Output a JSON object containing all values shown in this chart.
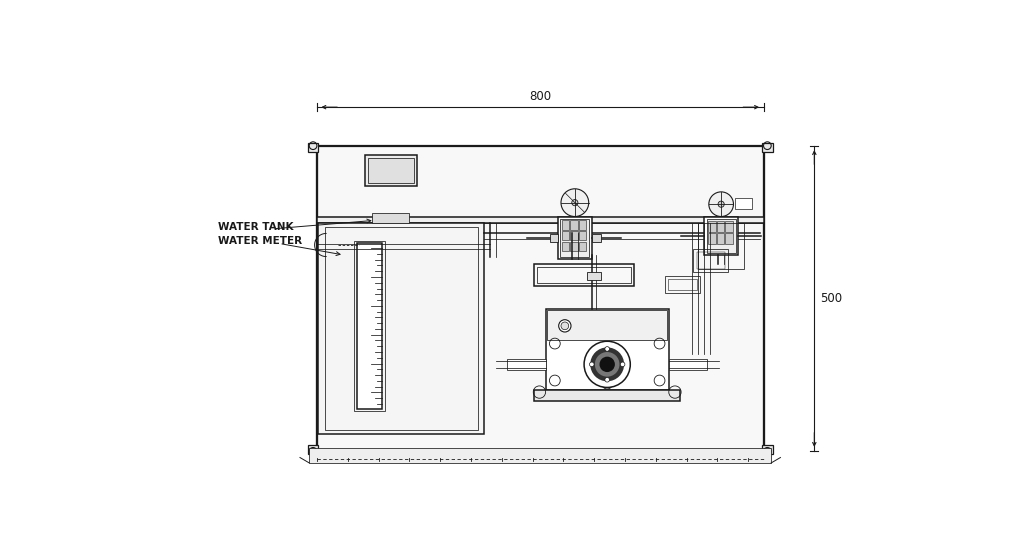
{
  "bg_color": "#ffffff",
  "lc": "#1a1a1a",
  "label_water_tank": "WATER TANK",
  "label_water_meter": "WATER METER",
  "dim_800": "800",
  "dim_500": "500",
  "font_label": 7.5,
  "font_dim": 8.5,
  "lw_main": 1.1,
  "lw_thin": 0.55,
  "lw_thick": 1.6
}
